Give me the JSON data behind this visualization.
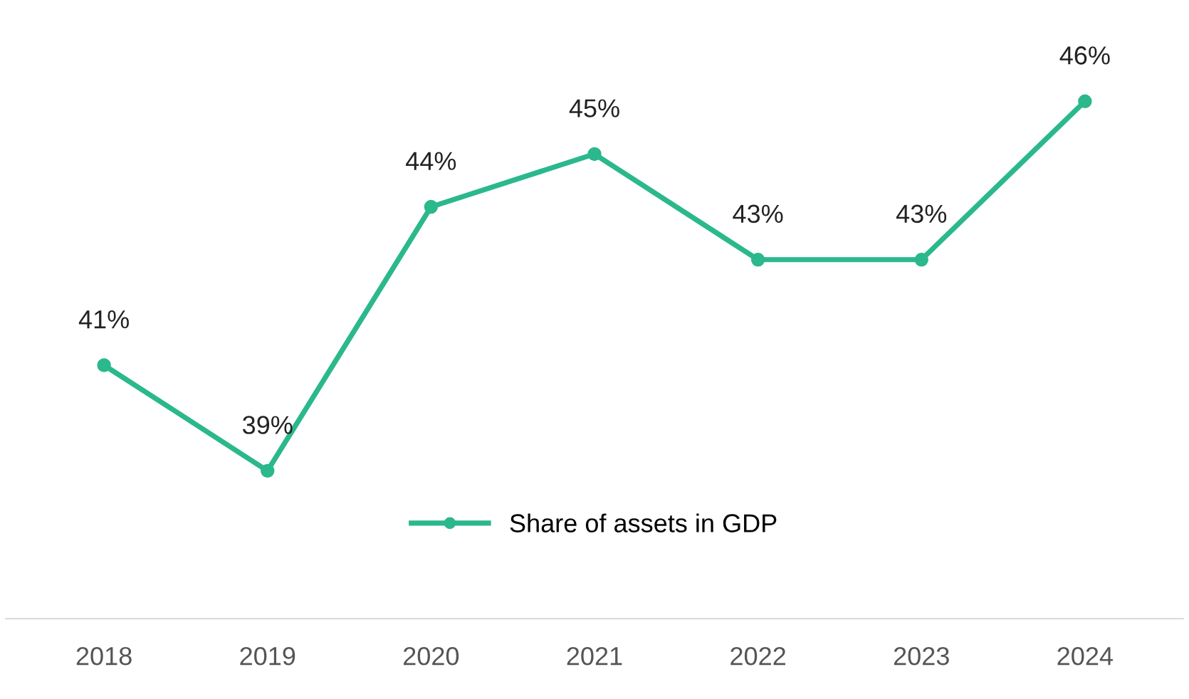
{
  "chart_data": {
    "type": "line",
    "categories": [
      "2018",
      "2019",
      "2020",
      "2021",
      "2022",
      "2023",
      "2024"
    ],
    "series": [
      {
        "name": "Share of assets in GDP",
        "color": "#2bb88c",
        "values": [
          41,
          39,
          44,
          45,
          43,
          43,
          46
        ],
        "value_labels": [
          "41%",
          "39%",
          "44%",
          "45%",
          "43%",
          "43%",
          "46%"
        ]
      }
    ],
    "marker": "circle",
    "line_style": "solid",
    "legend": "bottom",
    "grid": false,
    "tick_labels": "x"
  }
}
